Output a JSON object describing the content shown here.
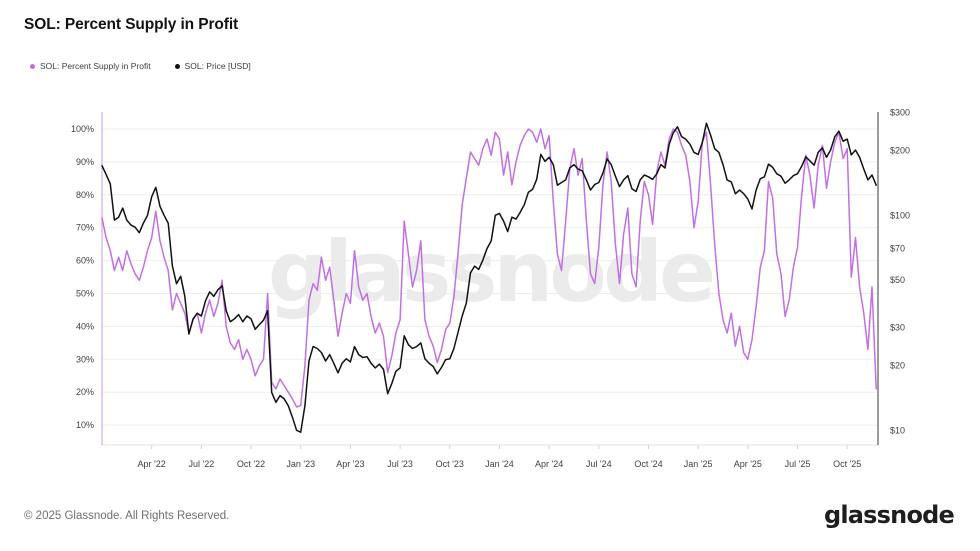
{
  "header": {
    "title": "SOL: Percent Supply in Profit"
  },
  "legend": [
    {
      "id": "supply",
      "label": "SOL: Percent Supply in Profit",
      "color": "#c170e4"
    },
    {
      "id": "price",
      "label": "SOL: Price [USD]",
      "color": "#111111"
    }
  ],
  "watermark": "glassnode",
  "footer": {
    "copyright": "© 2025 Glassnode. All Rights Reserved.",
    "logo": "glassnode"
  },
  "chart_data": {
    "type": "line",
    "title": "SOL: Percent Supply in Profit",
    "x_unit": "months since Jan 2022, step = 0.25 month (~weekly)",
    "x_start": 0,
    "x_step": 0.25,
    "x_ticks": [
      {
        "label": "Apr '22",
        "m": 3
      },
      {
        "label": "Jul '22",
        "m": 6
      },
      {
        "label": "Oct '22",
        "m": 9
      },
      {
        "label": "Jan '23",
        "m": 12
      },
      {
        "label": "Apr '23",
        "m": 15
      },
      {
        "label": "Jul '23",
        "m": 18
      },
      {
        "label": "Oct '23",
        "m": 21
      },
      {
        "label": "Jan '24",
        "m": 24
      },
      {
        "label": "Apr '24",
        "m": 27
      },
      {
        "label": "Jul '24",
        "m": 30
      },
      {
        "label": "Oct '24",
        "m": 33
      },
      {
        "label": "Jan '25",
        "m": 36
      },
      {
        "label": "Apr '25",
        "m": 39
      },
      {
        "label": "Jul '25",
        "m": 42
      },
      {
        "label": "Oct '25",
        "m": 45
      }
    ],
    "left_axis": {
      "name": "Percent Supply in Profit",
      "scale": "linear",
      "range": [
        4,
        105
      ],
      "ticks": [
        {
          "v": 100,
          "label": "100%"
        },
        {
          "v": 90,
          "label": "90%"
        },
        {
          "v": 80,
          "label": "80%"
        },
        {
          "v": 70,
          "label": "70%"
        },
        {
          "v": 60,
          "label": "60%"
        },
        {
          "v": 50,
          "label": "50%"
        },
        {
          "v": 40,
          "label": "40%"
        },
        {
          "v": 30,
          "label": "30%"
        },
        {
          "v": 20,
          "label": "20%"
        },
        {
          "v": 10,
          "label": "10%"
        }
      ]
    },
    "right_axis": {
      "name": "Price USD",
      "scale": "log",
      "range": [
        8.5,
        300
      ],
      "ticks": [
        {
          "v": 300,
          "label": "$300"
        },
        {
          "v": 200,
          "label": "$200"
        },
        {
          "v": 100,
          "label": "$100"
        },
        {
          "v": 70,
          "label": "$70"
        },
        {
          "v": 50,
          "label": "$50"
        },
        {
          "v": 30,
          "label": "$30"
        },
        {
          "v": 20,
          "label": "$20"
        },
        {
          "v": 10,
          "label": "$10"
        }
      ]
    },
    "grid": true,
    "legend_position": "top-left",
    "series": [
      {
        "id": "supply",
        "name": "SOL: Percent Supply in Profit",
        "axis": "left",
        "color": "#c170e4",
        "values": [
          73,
          67,
          63,
          57,
          61,
          57,
          63,
          59,
          56,
          54,
          58,
          63,
          67,
          75,
          66,
          61,
          57,
          45,
          50,
          47,
          44,
          38,
          42,
          44,
          38,
          44,
          48,
          43,
          47,
          54,
          40,
          35,
          33,
          36,
          30,
          33,
          30,
          25,
          28,
          30,
          50,
          23,
          21,
          24,
          22,
          20,
          18,
          15.5,
          16,
          28,
          48,
          53,
          51,
          61,
          54,
          58,
          48,
          37,
          44,
          50,
          47,
          63,
          52,
          48,
          50,
          43,
          38,
          41,
          37,
          26,
          31,
          38,
          42,
          72,
          62,
          52,
          57,
          66,
          42,
          37,
          34,
          29,
          33,
          39,
          41,
          49,
          62,
          77,
          85,
          93,
          91,
          89,
          94,
          97,
          92,
          99,
          97,
          86,
          93,
          83,
          90,
          95,
          98,
          100,
          99,
          96,
          100,
          94,
          98,
          78,
          62,
          57,
          72,
          88,
          94,
          86,
          91,
          72,
          56,
          53,
          64,
          83,
          93,
          84,
          65,
          53,
          68,
          76,
          56,
          52,
          72,
          84,
          80,
          71,
          87,
          93,
          89,
          97,
          100,
          99,
          95,
          92,
          84,
          70,
          78,
          96,
          99,
          83,
          65,
          50,
          42,
          38,
          44,
          34,
          40,
          32,
          30,
          36,
          46,
          58,
          63,
          84,
          79,
          62,
          56,
          43,
          48,
          58,
          64,
          80,
          92,
          86,
          76,
          89,
          95,
          82,
          90,
          96,
          99,
          91,
          94,
          55,
          67,
          52,
          44,
          33,
          52,
          21
        ]
      },
      {
        "id": "price",
        "name": "SOL: Price [USD]",
        "axis": "right",
        "color": "#111111",
        "values": [
          170,
          155,
          140,
          95,
          98,
          108,
          95,
          90,
          88,
          83,
          92,
          100,
          122,
          135,
          110,
          100,
          92,
          58,
          48,
          52,
          42,
          28,
          33,
          35,
          34,
          40,
          44,
          42,
          45,
          47,
          36,
          32,
          33,
          34.5,
          32,
          34,
          33,
          29.5,
          31,
          32.5,
          36,
          15,
          13.5,
          14.5,
          14,
          13,
          11.5,
          10,
          9.8,
          13,
          21,
          24.5,
          24,
          23,
          21,
          22.5,
          20.5,
          18.5,
          20.5,
          21.5,
          20.8,
          24.5,
          22.5,
          21.8,
          22,
          20.5,
          19.5,
          20.3,
          19.2,
          14.8,
          16.5,
          18.8,
          19.5,
          27.5,
          25,
          24,
          24.5,
          25.5,
          21.5,
          20.5,
          19.8,
          18.3,
          19.6,
          21.3,
          21.5,
          24,
          28.5,
          34,
          39,
          54,
          58,
          56,
          62,
          70,
          76,
          100,
          102,
          94,
          84,
          98,
          96,
          103,
          112,
          128,
          132,
          147,
          192,
          178,
          186,
          172,
          138,
          142,
          146,
          166,
          172,
          164,
          161,
          146,
          131,
          139,
          142,
          157,
          183,
          172,
          152,
          136,
          146,
          153,
          133,
          129,
          146,
          154,
          151,
          147,
          156,
          172,
          166,
          214,
          242,
          258,
          232,
          226,
          214,
          196,
          192,
          218,
          268,
          236,
          204,
          196,
          172,
          146,
          143,
          126,
          131,
          126,
          119,
          107,
          131,
          148,
          151,
          173,
          167,
          156,
          152,
          141,
          146,
          153,
          156,
          169,
          187,
          179,
          171,
          196,
          206,
          186,
          201,
          232,
          246,
          221,
          226,
          191,
          201,
          186,
          164,
          146,
          154,
          138
        ]
      }
    ]
  }
}
